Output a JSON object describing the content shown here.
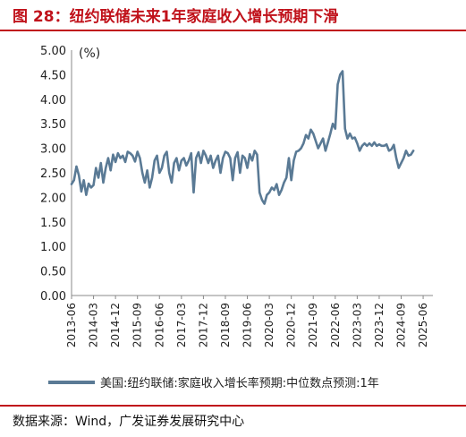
{
  "header": {
    "title": "图 28：纽约联储未来1年家庭收入增长预期下滑"
  },
  "footer": {
    "source": "数据来源：Wind，广发证券发展研究中心"
  },
  "colors": {
    "title": "#c0121b",
    "series": "#5a7a95"
  },
  "chart_data": {
    "type": "line",
    "title": "",
    "xlabel": "",
    "ylabel": "(%)",
    "ylim": [
      0,
      5
    ],
    "yticks": [
      "0.00",
      "0.50",
      "1.00",
      "1.50",
      "2.00",
      "2.50",
      "3.00",
      "3.50",
      "4.00",
      "4.50",
      "5.00"
    ],
    "xticks": [
      "2013-06",
      "2014-03",
      "2014-12",
      "2015-09",
      "2016-06",
      "2017-03",
      "2017-12",
      "2018-09",
      "2019-06",
      "2020-03",
      "2020-12",
      "2021-09",
      "2022-06",
      "2023-03",
      "2023-12",
      "2024-09",
      "2025-06"
    ],
    "x_start": "2013-06",
    "grid": false,
    "legend": "bottom",
    "series": [
      {
        "name": "美国:纽约联储:家庭收入增长率预期:中位数点预测:1年",
        "values": [
          2.27,
          2.35,
          2.63,
          2.45,
          2.12,
          2.35,
          2.05,
          2.28,
          2.2,
          2.25,
          2.6,
          2.4,
          2.7,
          2.3,
          2.6,
          2.8,
          2.55,
          2.87,
          2.72,
          2.9,
          2.8,
          2.85,
          2.72,
          2.93,
          2.9,
          2.85,
          2.73,
          2.93,
          2.8,
          2.5,
          2.3,
          2.55,
          2.2,
          2.4,
          2.75,
          2.85,
          2.5,
          2.6,
          2.85,
          2.93,
          2.5,
          2.3,
          2.7,
          2.8,
          2.55,
          2.75,
          2.8,
          2.65,
          2.75,
          2.9,
          2.1,
          2.8,
          2.92,
          2.7,
          2.95,
          2.85,
          2.7,
          2.85,
          2.6,
          2.75,
          2.85,
          2.5,
          2.8,
          2.93,
          2.9,
          2.8,
          2.35,
          2.8,
          2.92,
          2.5,
          2.85,
          2.8,
          2.6,
          2.88,
          2.75,
          2.95,
          2.87,
          2.1,
          1.95,
          1.87,
          2.05,
          2.1,
          2.2,
          2.15,
          2.27,
          2.05,
          2.15,
          2.3,
          2.4,
          2.8,
          2.35,
          2.75,
          2.93,
          2.95,
          3.0,
          3.1,
          3.27,
          3.2,
          3.38,
          3.3,
          3.15,
          3.0,
          3.1,
          3.2,
          2.95,
          3.12,
          3.3,
          3.5,
          3.4,
          4.3,
          4.5,
          4.57,
          3.4,
          3.2,
          3.3,
          3.2,
          3.22,
          3.1,
          2.95,
          3.05,
          3.1,
          3.05,
          3.1,
          3.05,
          3.12,
          3.05,
          3.08,
          3.05,
          3.05,
          3.08,
          2.95,
          2.98,
          3.07,
          2.8,
          2.6,
          2.7,
          2.8,
          2.95,
          2.85,
          2.87,
          2.95
        ]
      }
    ]
  }
}
